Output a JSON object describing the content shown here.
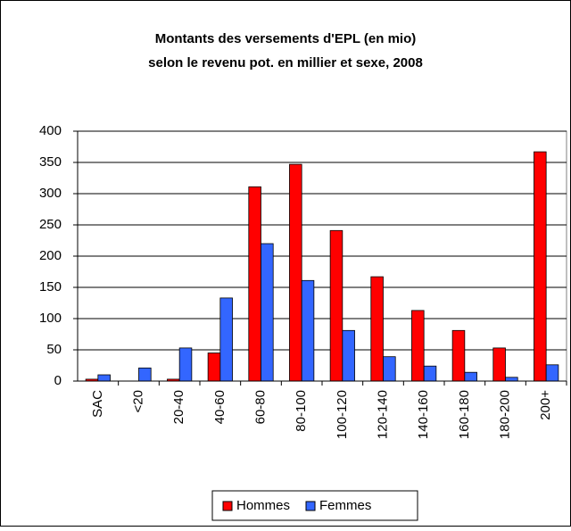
{
  "chart_data": {
    "type": "bar",
    "title": [
      "Montants des versements d'EPL (en mio)",
      "selon le revenu pot. en millier et sexe, 2008"
    ],
    "categories": [
      "SAC",
      "<20",
      "20-40",
      "40-60",
      "60-80",
      "80-100",
      "100-120",
      "120-140",
      "140-160",
      "160-180",
      "180-200",
      "200+"
    ],
    "series": [
      {
        "name": "Hommes",
        "color": "#ff0000",
        "values": [
          3,
          0,
          3,
          45,
          311,
          347,
          241,
          167,
          113,
          81,
          53,
          367
        ]
      },
      {
        "name": "Femmes",
        "color": "#3366ff",
        "values": [
          10,
          21,
          53,
          133,
          220,
          161,
          81,
          39,
          24,
          14,
          6,
          26
        ]
      }
    ],
    "ylim": [
      0,
      400
    ],
    "yticks": [
      0,
      50,
      100,
      150,
      200,
      250,
      300,
      350,
      400
    ],
    "grid": true,
    "legend": "bottom"
  }
}
